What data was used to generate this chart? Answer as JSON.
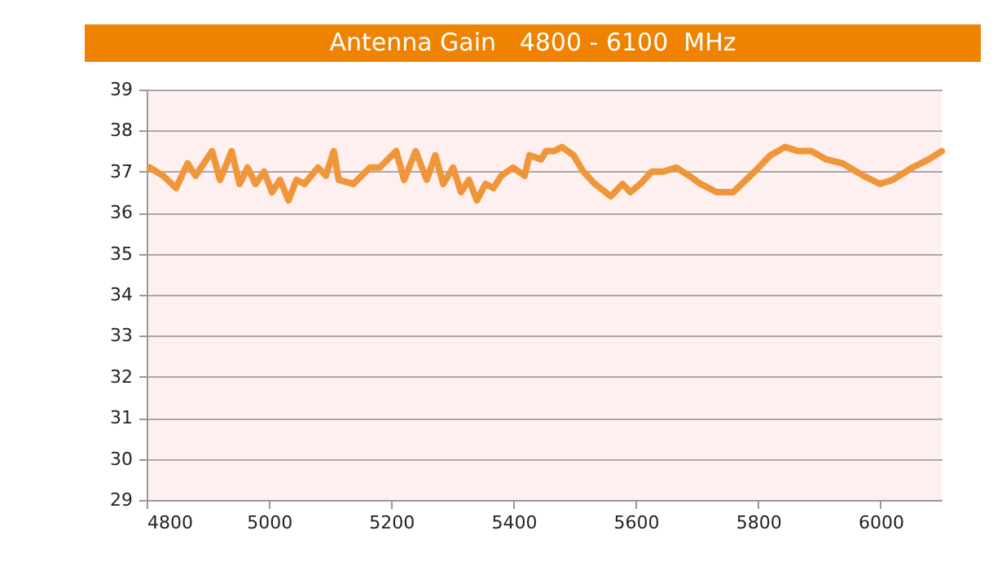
{
  "chart_data": {
    "type": "line",
    "title": "Antenna Gain   4800 - 6100  MHz",
    "x": [
      4805,
      4827,
      4848,
      4867,
      4880,
      4907,
      4920,
      4939,
      4952,
      4965,
      4978,
      4992,
      5005,
      5018,
      5032,
      5045,
      5058,
      5080,
      5093,
      5106,
      5114,
      5138,
      5165,
      5181,
      5208,
      5221,
      5240,
      5258,
      5272,
      5285,
      5301,
      5314,
      5327,
      5340,
      5354,
      5367,
      5380,
      5399,
      5418,
      5426,
      5445,
      5453,
      5466,
      5479,
      5498,
      5514,
      5533,
      5559,
      5578,
      5591,
      5607,
      5626,
      5645,
      5666,
      5687,
      5706,
      5732,
      5759,
      5794,
      5820,
      5844,
      5866,
      5887,
      5911,
      5938,
      5972,
      5999,
      6020,
      6052,
      6079,
      6100
    ],
    "series": [
      {
        "color": "#f0963a",
        "values": [
          37.1,
          36.9,
          36.6,
          37.2,
          36.9,
          37.5,
          36.8,
          37.5,
          36.7,
          37.1,
          36.7,
          37.0,
          36.5,
          36.8,
          36.3,
          36.8,
          36.7,
          37.1,
          36.9,
          37.5,
          36.8,
          36.7,
          37.1,
          37.1,
          37.5,
          36.8,
          37.5,
          36.8,
          37.4,
          36.7,
          37.1,
          36.5,
          36.8,
          36.3,
          36.7,
          36.6,
          36.9,
          37.1,
          36.9,
          37.4,
          37.3,
          37.5,
          37.5,
          37.6,
          37.4,
          37.0,
          36.7,
          36.4,
          36.7,
          36.5,
          36.7,
          37.0,
          37.0,
          37.1,
          36.9,
          36.7,
          36.5,
          36.5,
          37.0,
          37.4,
          37.6,
          37.5,
          37.5,
          37.3,
          37.2,
          36.9,
          36.7,
          36.8,
          37.1,
          37.3,
          37.5
        ]
      }
    ],
    "xlim": [
      4800,
      6100
    ],
    "xticks": [
      4800,
      5000,
      5200,
      5400,
      5600,
      5800,
      6000
    ],
    "ylim": [
      29,
      39
    ],
    "yticks": [
      29,
      30,
      31,
      32,
      33,
      34,
      35,
      36,
      37,
      38,
      39
    ],
    "grid": "y",
    "marker": "none",
    "line_style": "solid"
  }
}
